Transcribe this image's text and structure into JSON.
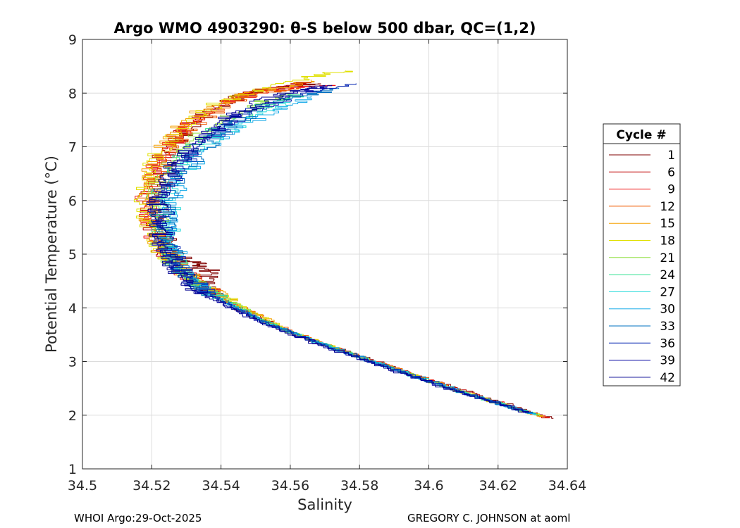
{
  "chart_data": {
    "type": "line",
    "title": "Argo WMO 4903290: θ-S below 500 dbar,  QC=(1,2)",
    "xlabel": "Salinity",
    "ylabel": "Potential Temperature (°C)",
    "xlim": [
      34.5,
      34.64
    ],
    "ylim": [
      1,
      9
    ],
    "xticks": [
      34.5,
      34.52,
      34.54,
      34.56,
      34.58,
      34.6,
      34.62,
      34.64
    ],
    "xtick_labels": [
      "34.5",
      "34.52",
      "34.54",
      "34.56",
      "34.58",
      "34.6",
      "34.62",
      "34.64"
    ],
    "yticks": [
      1,
      2,
      3,
      4,
      5,
      6,
      7,
      8,
      9
    ],
    "ytick_labels": [
      "1",
      "2",
      "3",
      "4",
      "5",
      "6",
      "7",
      "8",
      "9"
    ],
    "grid": true,
    "legend": {
      "title": "Cycle #",
      "placement": "outside-right",
      "entries": [
        "1",
        "6",
        "9",
        "12",
        "15",
        "18",
        "21",
        "24",
        "27",
        "30",
        "33",
        "36",
        "39",
        "42"
      ],
      "colors": [
        "#800000",
        "#c00000",
        "#f01010",
        "#f05a00",
        "#f5a000",
        "#e0e000",
        "#90e040",
        "#30e090",
        "#20d8d8",
        "#10a8e8",
        "#0070c0",
        "#0020b0",
        "#0000a0",
        "#000090"
      ]
    },
    "series": [
      {
        "name": "1",
        "color": "#800000",
        "points": [
          [
            34.636,
            1.94
          ],
          [
            34.62,
            2.28
          ],
          [
            34.6,
            2.7
          ],
          [
            34.58,
            3.12
          ],
          [
            34.563,
            3.48
          ],
          [
            34.548,
            3.88
          ],
          [
            34.54,
            4.15
          ],
          [
            34.535,
            4.45
          ],
          [
            34.537,
            4.68
          ],
          [
            34.533,
            4.82
          ],
          [
            34.529,
            4.9
          ],
          [
            34.526,
            5.05
          ],
          [
            34.524,
            5.35
          ],
          [
            34.522,
            5.7
          ],
          [
            34.522,
            6.1
          ],
          [
            34.523,
            6.5
          ],
          [
            34.526,
            7.0
          ],
          [
            34.53,
            7.3
          ],
          [
            34.534,
            7.55
          ],
          [
            34.54,
            7.8
          ],
          [
            34.548,
            8.0
          ],
          [
            34.558,
            8.12
          ],
          [
            34.568,
            8.18
          ]
        ]
      },
      {
        "name": "6",
        "color": "#c00000",
        "points": [
          [
            34.635,
            1.95
          ],
          [
            34.618,
            2.3
          ],
          [
            34.598,
            2.73
          ],
          [
            34.578,
            3.16
          ],
          [
            34.562,
            3.52
          ],
          [
            34.549,
            3.9
          ],
          [
            34.541,
            4.18
          ],
          [
            34.533,
            4.5
          ],
          [
            34.528,
            4.75
          ],
          [
            34.524,
            5.05
          ],
          [
            34.521,
            5.45
          ],
          [
            34.519,
            5.85
          ],
          [
            34.52,
            6.3
          ],
          [
            34.523,
            6.8
          ],
          [
            34.528,
            7.25
          ],
          [
            34.532,
            7.5
          ],
          [
            34.538,
            7.75
          ],
          [
            34.547,
            7.98
          ],
          [
            34.556,
            8.12
          ],
          [
            34.566,
            8.2
          ]
        ]
      },
      {
        "name": "9",
        "color": "#f01010",
        "points": [
          [
            34.635,
            1.96
          ],
          [
            34.617,
            2.32
          ],
          [
            34.597,
            2.74
          ],
          [
            34.577,
            3.17
          ],
          [
            34.561,
            3.55
          ],
          [
            34.548,
            3.92
          ],
          [
            34.54,
            4.2
          ],
          [
            34.532,
            4.5
          ],
          [
            34.527,
            4.78
          ],
          [
            34.523,
            5.1
          ],
          [
            34.52,
            5.5
          ],
          [
            34.518,
            5.9
          ],
          [
            34.519,
            6.35
          ],
          [
            34.522,
            6.8
          ],
          [
            34.527,
            7.2
          ],
          [
            34.532,
            7.5
          ],
          [
            34.54,
            7.8
          ],
          [
            34.55,
            8.0
          ],
          [
            34.56,
            8.1
          ],
          [
            34.571,
            8.15
          ]
        ]
      },
      {
        "name": "12",
        "color": "#f05a00",
        "points": [
          [
            34.634,
            1.97
          ],
          [
            34.616,
            2.33
          ],
          [
            34.596,
            2.76
          ],
          [
            34.577,
            3.18
          ],
          [
            34.561,
            3.56
          ],
          [
            34.553,
            3.82
          ],
          [
            34.545,
            4.05
          ],
          [
            34.538,
            4.3
          ],
          [
            34.531,
            4.6
          ],
          [
            34.526,
            4.9
          ],
          [
            34.522,
            5.25
          ],
          [
            34.52,
            5.6
          ],
          [
            34.519,
            6.0
          ],
          [
            34.521,
            6.45
          ],
          [
            34.525,
            6.9
          ],
          [
            34.53,
            7.3
          ],
          [
            34.536,
            7.6
          ],
          [
            34.544,
            7.85
          ],
          [
            34.553,
            8.02
          ],
          [
            34.563,
            8.1
          ]
        ]
      },
      {
        "name": "15",
        "color": "#f5a000",
        "points": [
          [
            34.633,
            1.98
          ],
          [
            34.615,
            2.34
          ],
          [
            34.595,
            2.78
          ],
          [
            34.576,
            3.2
          ],
          [
            34.56,
            3.58
          ],
          [
            34.552,
            3.85
          ],
          [
            34.544,
            4.1
          ],
          [
            34.536,
            4.38
          ],
          [
            34.53,
            4.65
          ],
          [
            34.525,
            4.95
          ],
          [
            34.521,
            5.3
          ],
          [
            34.519,
            5.7
          ],
          [
            34.519,
            6.1
          ],
          [
            34.52,
            6.5
          ],
          [
            34.523,
            6.95
          ],
          [
            34.528,
            7.35
          ],
          [
            34.535,
            7.7
          ],
          [
            34.545,
            7.95
          ],
          [
            34.556,
            8.1
          ],
          [
            34.566,
            8.25
          ]
        ]
      },
      {
        "name": "18",
        "color": "#e0e000",
        "points": [
          [
            34.633,
            1.99
          ],
          [
            34.614,
            2.36
          ],
          [
            34.594,
            2.8
          ],
          [
            34.575,
            3.22
          ],
          [
            34.559,
            3.6
          ],
          [
            34.551,
            3.88
          ],
          [
            34.543,
            4.12
          ],
          [
            34.535,
            4.4
          ],
          [
            34.529,
            4.7
          ],
          [
            34.524,
            5.0
          ],
          [
            34.52,
            5.35
          ],
          [
            34.518,
            5.75
          ],
          [
            34.518,
            6.2
          ],
          [
            34.52,
            6.65
          ],
          [
            34.524,
            7.1
          ],
          [
            34.53,
            7.5
          ],
          [
            34.54,
            7.85
          ],
          [
            34.552,
            8.1
          ],
          [
            34.565,
            8.3
          ],
          [
            34.576,
            8.42
          ]
        ]
      },
      {
        "name": "21",
        "color": "#90e040",
        "points": [
          [
            34.632,
            2.0
          ],
          [
            34.613,
            2.38
          ],
          [
            34.593,
            2.82
          ],
          [
            34.574,
            3.24
          ],
          [
            34.558,
            3.62
          ],
          [
            34.55,
            3.9
          ],
          [
            34.542,
            4.15
          ],
          [
            34.534,
            4.42
          ],
          [
            34.528,
            4.72
          ],
          [
            34.524,
            5.05
          ],
          [
            34.522,
            5.45
          ],
          [
            34.521,
            5.85
          ],
          [
            34.522,
            6.3
          ],
          [
            34.526,
            6.75
          ],
          [
            34.532,
            7.15
          ],
          [
            34.54,
            7.5
          ],
          [
            34.55,
            7.8
          ],
          [
            34.56,
            8.0
          ]
        ]
      },
      {
        "name": "24",
        "color": "#30e090",
        "points": [
          [
            34.632,
            2.01
          ],
          [
            34.612,
            2.4
          ],
          [
            34.592,
            2.84
          ],
          [
            34.573,
            3.26
          ],
          [
            34.557,
            3.64
          ],
          [
            34.548,
            3.92
          ],
          [
            34.54,
            4.18
          ],
          [
            34.533,
            4.45
          ],
          [
            34.528,
            4.75
          ],
          [
            34.525,
            5.1
          ],
          [
            34.523,
            5.5
          ],
          [
            34.522,
            5.9
          ],
          [
            34.524,
            6.35
          ],
          [
            34.528,
            6.8
          ],
          [
            34.535,
            7.2
          ],
          [
            34.544,
            7.55
          ],
          [
            34.555,
            7.85
          ],
          [
            34.563,
            7.98
          ]
        ]
      },
      {
        "name": "27",
        "color": "#20d8d8",
        "points": [
          [
            34.631,
            2.02
          ],
          [
            34.611,
            2.42
          ],
          [
            34.591,
            2.86
          ],
          [
            34.572,
            3.28
          ],
          [
            34.556,
            3.66
          ],
          [
            34.547,
            3.94
          ],
          [
            34.539,
            4.2
          ],
          [
            34.532,
            4.48
          ],
          [
            34.528,
            4.8
          ],
          [
            34.526,
            5.15
          ],
          [
            34.525,
            5.55
          ],
          [
            34.525,
            5.95
          ],
          [
            34.527,
            6.4
          ],
          [
            34.532,
            6.85
          ],
          [
            34.54,
            7.25
          ],
          [
            34.55,
            7.6
          ],
          [
            34.56,
            7.85
          ]
        ]
      },
      {
        "name": "30",
        "color": "#10a8e8",
        "points": [
          [
            34.631,
            2.03
          ],
          [
            34.61,
            2.44
          ],
          [
            34.59,
            2.88
          ],
          [
            34.571,
            3.3
          ],
          [
            34.555,
            3.68
          ],
          [
            34.546,
            3.96
          ],
          [
            34.538,
            4.22
          ],
          [
            34.532,
            4.5
          ],
          [
            34.528,
            4.82
          ],
          [
            34.526,
            5.2
          ],
          [
            34.525,
            5.6
          ],
          [
            34.526,
            6.05
          ],
          [
            34.529,
            6.5
          ],
          [
            34.535,
            6.95
          ],
          [
            34.544,
            7.35
          ],
          [
            34.555,
            7.7
          ],
          [
            34.566,
            7.95
          ]
        ]
      },
      {
        "name": "33",
        "color": "#0070c0",
        "points": [
          [
            34.63,
            2.04
          ],
          [
            34.61,
            2.45
          ],
          [
            34.59,
            2.89
          ],
          [
            34.571,
            3.31
          ],
          [
            34.555,
            3.69
          ],
          [
            34.546,
            3.97
          ],
          [
            34.538,
            4.23
          ],
          [
            34.531,
            4.52
          ],
          [
            34.527,
            4.85
          ],
          [
            34.525,
            5.22
          ],
          [
            34.524,
            5.62
          ],
          [
            34.525,
            6.05
          ],
          [
            34.528,
            6.5
          ],
          [
            34.534,
            6.95
          ],
          [
            34.542,
            7.35
          ],
          [
            34.552,
            7.7
          ],
          [
            34.563,
            7.95
          ],
          [
            34.574,
            8.1
          ]
        ]
      },
      {
        "name": "36",
        "color": "#0020b0",
        "points": [
          [
            34.63,
            2.05
          ],
          [
            34.609,
            2.46
          ],
          [
            34.589,
            2.9
          ],
          [
            34.57,
            3.32
          ],
          [
            34.554,
            3.7
          ],
          [
            34.545,
            3.98
          ],
          [
            34.537,
            4.25
          ],
          [
            34.531,
            4.55
          ],
          [
            34.527,
            4.88
          ],
          [
            34.524,
            5.25
          ],
          [
            34.523,
            5.65
          ],
          [
            34.524,
            6.1
          ],
          [
            34.527,
            6.55
          ],
          [
            34.533,
            7.0
          ],
          [
            34.541,
            7.4
          ],
          [
            34.551,
            7.75
          ],
          [
            34.563,
            8.0
          ],
          [
            34.579,
            8.18
          ]
        ]
      },
      {
        "name": "39",
        "color": "#0000a0",
        "points": [
          [
            34.629,
            2.06
          ],
          [
            34.608,
            2.47
          ],
          [
            34.588,
            2.91
          ],
          [
            34.569,
            3.33
          ],
          [
            34.553,
            3.71
          ],
          [
            34.544,
            3.99
          ],
          [
            34.536,
            4.26
          ],
          [
            34.53,
            4.56
          ],
          [
            34.526,
            4.9
          ],
          [
            34.523,
            5.28
          ],
          [
            34.522,
            5.68
          ],
          [
            34.523,
            6.12
          ],
          [
            34.526,
            6.58
          ],
          [
            34.532,
            7.02
          ],
          [
            34.54,
            7.42
          ],
          [
            34.55,
            7.78
          ],
          [
            34.561,
            8.02
          ],
          [
            34.572,
            8.15
          ]
        ]
      },
      {
        "name": "42",
        "color": "#000090",
        "points": [
          [
            34.629,
            2.07
          ],
          [
            34.607,
            2.48
          ],
          [
            34.587,
            2.92
          ],
          [
            34.568,
            3.34
          ],
          [
            34.552,
            3.72
          ],
          [
            34.543,
            4.0
          ],
          [
            34.535,
            4.27
          ],
          [
            34.529,
            4.57
          ],
          [
            34.525,
            4.92
          ],
          [
            34.522,
            5.3
          ],
          [
            34.521,
            5.7
          ],
          [
            34.522,
            6.15
          ],
          [
            34.525,
            6.6
          ],
          [
            34.531,
            7.05
          ],
          [
            34.539,
            7.45
          ],
          [
            34.549,
            7.8
          ],
          [
            34.56,
            8.05
          ],
          [
            34.57,
            8.15
          ]
        ]
      }
    ]
  },
  "footer": {
    "left": "WHOI Argo:29-Oct-2025",
    "right": "GREGORY C. JOHNSON at aoml"
  }
}
